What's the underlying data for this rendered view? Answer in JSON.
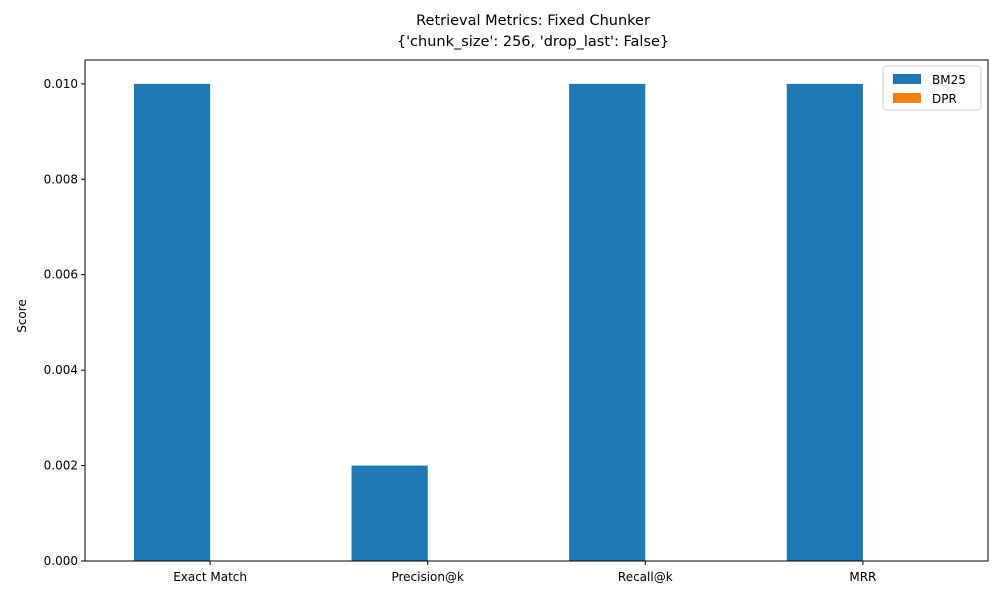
{
  "chart_data": {
    "type": "bar",
    "title": "Retrieval Metrics: Fixed Chunker",
    "subtitle": "{'chunk_size': 256, 'drop_last': False}",
    "xlabel": "",
    "ylabel": "Score",
    "categories": [
      "Exact Match",
      "Precision@k",
      "Recall@k",
      "MRR"
    ],
    "series": [
      {
        "name": "BM25",
        "values": [
          0.01,
          0.002,
          0.01,
          0.01
        ],
        "color": "#1f77b4"
      },
      {
        "name": "DPR",
        "values": [
          0,
          0,
          0,
          0
        ],
        "color": "#ff7f0e"
      }
    ],
    "ylim": [
      0,
      0.0105
    ],
    "yticks": [
      0.0,
      0.002,
      0.004,
      0.006,
      0.008,
      0.01
    ],
    "ytick_labels": [
      "0.000",
      "0.002",
      "0.004",
      "0.006",
      "0.008",
      "0.010"
    ],
    "grid": false,
    "legend": "top-right"
  }
}
